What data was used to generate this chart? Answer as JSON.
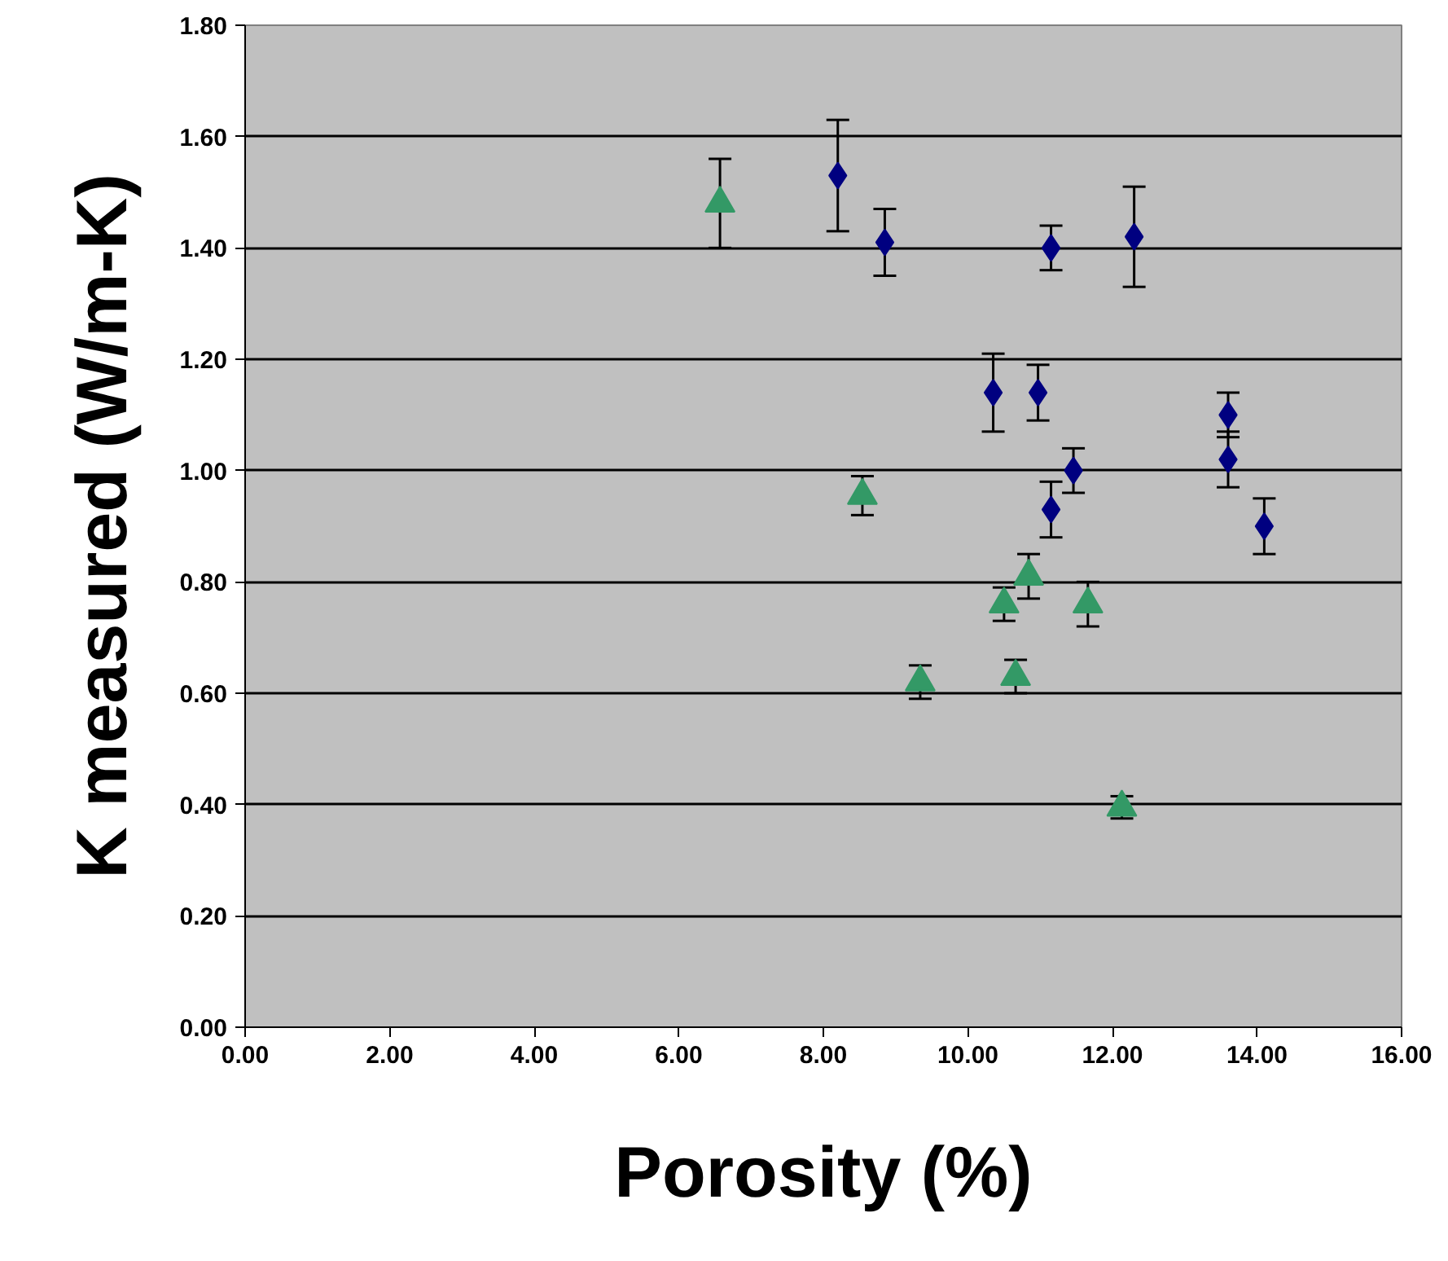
{
  "chart_data": {
    "type": "scatter",
    "xlabel": "Porosity (%)",
    "ylabel": "K measured (W/m-K)",
    "xlim": [
      0,
      16
    ],
    "ylim": [
      0,
      1.8
    ],
    "xticks": [
      {
        "value": 0,
        "label": "0.00"
      },
      {
        "value": 2,
        "label": "2.00"
      },
      {
        "value": 4,
        "label": "4.00"
      },
      {
        "value": 6,
        "label": "6.00"
      },
      {
        "value": 8,
        "label": "8.00"
      },
      {
        "value": 10,
        "label": "10.00"
      },
      {
        "value": 12,
        "label": "12.00"
      },
      {
        "value": 14,
        "label": "14.00"
      },
      {
        "value": 16,
        "label": "16.00"
      }
    ],
    "yticks": [
      {
        "value": 0,
        "label": "0.00"
      },
      {
        "value": 0.2,
        "label": "0.20"
      },
      {
        "value": 0.4,
        "label": "0.40"
      },
      {
        "value": 0.6,
        "label": "0.60"
      },
      {
        "value": 0.8,
        "label": "0.80"
      },
      {
        "value": 1.0,
        "label": "1.00"
      },
      {
        "value": 1.2,
        "label": "1.20"
      },
      {
        "value": 1.4,
        "label": "1.40"
      },
      {
        "value": 1.6,
        "label": "1.60"
      },
      {
        "value": 1.8,
        "label": "1.80"
      }
    ],
    "grid": "y",
    "series": [
      {
        "color": "#000080",
        "marker": "diamond",
        "x": [
          8.2,
          8.85,
          11.15,
          12.3,
          10.35,
          10.97,
          13.6,
          13.6,
          11.46,
          11.15,
          14.1
        ],
        "values": [
          1.53,
          1.41,
          1.4,
          1.42,
          1.14,
          1.14,
          1.1,
          1.02,
          1.0,
          0.93,
          0.9
        ],
        "errors": [
          0.1,
          0.06,
          0.04,
          0.09,
          0.07,
          0.05,
          0.04,
          0.05,
          0.04,
          0.05,
          0.05
        ]
      },
      {
        "color": "#339966",
        "marker": "triangle",
        "x": [
          6.57,
          8.54,
          9.34,
          10.5,
          10.84,
          10.66,
          11.66,
          12.13
        ],
        "values": [
          1.48,
          0.955,
          0.62,
          0.76,
          0.81,
          0.63,
          0.76,
          0.395
        ],
        "errors": [
          0.08,
          0.035,
          0.03,
          0.03,
          0.04,
          0.03,
          0.04,
          0.02
        ]
      }
    ]
  }
}
